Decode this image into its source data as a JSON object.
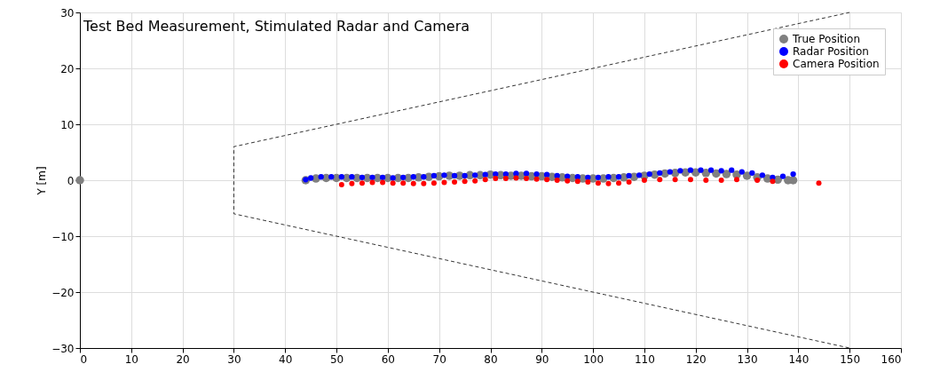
{
  "chart_data": {
    "type": "scatter",
    "title": "Test Bed Measurement, Stimulated Radar and Camera",
    "ylabel": "Y [m]",
    "xlim": [
      0,
      160
    ],
    "xticks": [
      0,
      10,
      20,
      30,
      40,
      50,
      60,
      70,
      80,
      90,
      100,
      110,
      120,
      130,
      140,
      150,
      160
    ],
    "ylim": [
      -30,
      30
    ],
    "yticks": [
      -30,
      -20,
      -10,
      0,
      10,
      20,
      30
    ],
    "grid": true,
    "legend": "top right",
    "marker": "circle",
    "series": [
      {
        "type": "line",
        "color": "#000000",
        "line_style": "dashed",
        "marker": "none",
        "x": [
          150,
          30,
          30,
          150
        ],
        "values": [
          30,
          6,
          -6,
          -30
        ]
      },
      {
        "name": "True Position",
        "color": "#808080",
        "x": [
          0,
          44,
          46,
          48,
          50,
          52,
          54,
          56,
          58,
          60,
          62,
          64,
          66,
          68,
          70,
          72,
          74,
          76,
          78,
          80,
          82,
          84,
          86,
          88,
          90,
          92,
          94,
          96,
          98,
          100,
          102,
          104,
          106,
          108,
          110,
          112,
          114,
          116,
          118,
          120,
          122,
          124,
          126,
          128,
          130,
          132,
          134,
          136,
          138,
          139
        ],
        "values": [
          0,
          0.0,
          0.3,
          0.4,
          0.4,
          0.4,
          0.4,
          0.4,
          0.4,
          0.4,
          0.4,
          0.4,
          0.5,
          0.6,
          0.7,
          0.8,
          0.8,
          0.9,
          0.9,
          1.0,
          0.9,
          0.8,
          0.8,
          0.7,
          0.7,
          0.6,
          0.5,
          0.4,
          0.3,
          0.3,
          0.3,
          0.4,
          0.5,
          0.6,
          0.8,
          1.0,
          1.2,
          1.3,
          1.4,
          1.4,
          1.3,
          1.2,
          1.1,
          1.0,
          0.8,
          0.5,
          0.3,
          0.1,
          0.0,
          0.0
        ]
      },
      {
        "name": "Radar Position",
        "color": "#0000ff",
        "x": [
          44,
          45,
          47,
          49,
          51,
          53,
          55,
          57,
          59,
          61,
          63,
          65,
          67,
          69,
          71,
          73,
          75,
          77,
          79,
          81,
          83,
          85,
          87,
          89,
          91,
          93,
          95,
          97,
          99,
          101,
          103,
          105,
          107,
          109,
          111,
          113,
          115,
          117,
          119,
          121,
          123,
          125,
          127,
          129,
          131,
          133,
          135,
          137,
          139
        ],
        "values": [
          0.1,
          0.4,
          0.6,
          0.6,
          0.6,
          0.6,
          0.5,
          0.5,
          0.5,
          0.4,
          0.5,
          0.6,
          0.6,
          0.8,
          0.9,
          0.8,
          0.8,
          0.9,
          1.0,
          1.1,
          1.1,
          1.2,
          1.2,
          1.1,
          1.0,
          0.8,
          0.7,
          0.6,
          0.5,
          0.5,
          0.6,
          0.6,
          0.8,
          0.9,
          1.1,
          1.3,
          1.5,
          1.7,
          1.8,
          1.8,
          1.8,
          1.7,
          1.8,
          1.5,
          1.3,
          0.9,
          0.5,
          0.7,
          1.1
        ]
      },
      {
        "name": "Camera Position",
        "color": "#ff0000",
        "x": [
          51,
          53,
          55,
          57,
          59,
          61,
          63,
          65,
          67,
          69,
          71,
          73,
          75,
          77,
          79,
          81,
          83,
          85,
          87,
          89,
          91,
          93,
          95,
          97,
          99,
          101,
          103,
          105,
          107,
          110,
          113,
          116,
          119,
          122,
          125,
          128,
          132,
          135,
          144
        ],
        "values": [
          -0.8,
          -0.6,
          -0.5,
          -0.4,
          -0.4,
          -0.5,
          -0.5,
          -0.6,
          -0.6,
          -0.5,
          -0.4,
          -0.3,
          -0.2,
          -0.1,
          0.1,
          0.3,
          0.3,
          0.4,
          0.3,
          0.2,
          0.1,
          0.0,
          -0.1,
          -0.2,
          -0.3,
          -0.5,
          -0.6,
          -0.5,
          -0.3,
          0.0,
          0.1,
          0.1,
          0.1,
          0.0,
          0.0,
          0.1,
          0.0,
          -0.2,
          -0.5
        ]
      }
    ]
  }
}
